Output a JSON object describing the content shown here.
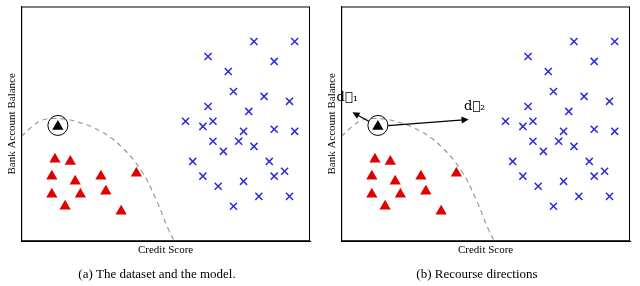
{
  "chart_data": [
    {
      "type": "scatter",
      "caption": "(a) The dataset and the model.",
      "x_label": "Credit Score",
      "y_label": "Bank Account Balance",
      "xlim": [
        0,
        100
      ],
      "ylim": [
        0,
        100
      ],
      "tick_labels": false,
      "grid": false,
      "series": [
        {
          "color": "#e00000",
          "marker": "triangle",
          "x": [
            11.7,
            17.0,
            10.6,
            18.7,
            27.6,
            39.9,
            29.3,
            10.6,
            20.5,
            15.2,
            34.6
          ],
          "values": [
            34.9,
            34.0,
            27.7,
            25.5,
            27.7,
            28.9,
            21.3,
            20.0,
            20.0,
            14.9,
            12.8
          ]
        },
        {
          "color": "#2b2bd9",
          "marker": "x",
          "x": [
            71.7,
            80.6,
            87.6,
            94.7,
            64.7,
            73.5,
            84.1,
            56.9,
            64.7,
            78.8,
            62.9,
            66.4,
            77.0,
            87.6,
            80.6,
            92.9,
            94.7,
            59.4,
            70.0,
            75.3,
            85.9,
            91.2,
            62.9,
            77.0,
            68.2,
            82.3,
            73.5,
            87.6,
            92.9,
            66.4
          ],
          "values": [
            72.3,
            85.1,
            76.6,
            85.1,
            78.7,
            63.8,
            61.7,
            51.1,
            57.4,
            55.3,
            48.9,
            42.6,
            46.8,
            47.7,
            40.4,
            59.6,
            46.8,
            34.0,
            38.3,
            42.6,
            34.0,
            29.8,
            27.7,
            25.5,
            23.4,
            19.1,
            14.9,
            27.7,
            19.1,
            51.1
          ]
        },
        {
          "color": "#000000",
          "marker": "circled_triangle",
          "x": [
            12.7
          ],
          "values": [
            48.9
          ]
        },
        {
          "color": "#999999",
          "type": "line",
          "line_style": "dashed",
          "x": [
            0,
            6.4,
            11.7,
            18.7,
            27.6,
            34.6,
            41.7,
            47.0,
            50.5,
            53.0
          ],
          "values": [
            44.7,
            51.1,
            52.3,
            51.1,
            46.8,
            40.4,
            29.8,
            17.0,
            6.4,
            0
          ]
        }
      ]
    },
    {
      "type": "scatter",
      "caption": "(b) Recourse directions",
      "x_label": "Credit Score",
      "y_label": "Bank Account Balance",
      "xlim": [
        0,
        100
      ],
      "ylim": [
        0,
        100
      ],
      "tick_labels": false,
      "grid": false,
      "series": [
        {
          "color": "#e00000",
          "marker": "triangle",
          "x": [
            11.7,
            17.0,
            10.6,
            18.7,
            27.6,
            39.9,
            29.3,
            10.6,
            20.5,
            15.2,
            34.6
          ],
          "values": [
            34.9,
            34.0,
            27.7,
            25.5,
            27.7,
            28.9,
            21.3,
            20.0,
            20.0,
            14.9,
            12.8
          ]
        },
        {
          "color": "#2b2bd9",
          "marker": "x",
          "x": [
            71.7,
            80.6,
            87.6,
            94.7,
            64.7,
            73.5,
            84.1,
            56.9,
            64.7,
            78.8,
            62.9,
            66.4,
            77.0,
            87.6,
            80.6,
            92.9,
            94.7,
            59.4,
            70.0,
            75.3,
            85.9,
            91.2,
            62.9,
            77.0,
            68.2,
            82.3,
            73.5,
            87.6,
            92.9,
            66.4
          ],
          "values": [
            72.3,
            85.1,
            76.6,
            85.1,
            78.7,
            63.8,
            61.7,
            51.1,
            57.4,
            55.3,
            48.9,
            42.6,
            46.8,
            47.7,
            40.4,
            59.6,
            46.8,
            34.0,
            38.3,
            42.6,
            34.0,
            29.8,
            27.7,
            25.5,
            23.4,
            19.1,
            14.9,
            27.7,
            19.1,
            51.1
          ]
        },
        {
          "color": "#000000",
          "marker": "circled_triangle",
          "x": [
            12.7
          ],
          "values": [
            48.9
          ]
        },
        {
          "color": "#999999",
          "type": "line",
          "line_style": "dashed",
          "x": [
            0,
            6.4,
            11.7,
            18.7,
            27.6,
            34.6,
            41.7,
            47.0,
            50.5,
            53.0
          ],
          "values": [
            44.7,
            51.1,
            52.3,
            51.1,
            46.8,
            40.4,
            29.8,
            17.0,
            6.4,
            0
          ]
        }
      ],
      "arrows": [
        {
          "label": "d⃗₁",
          "from": [
            12.7,
            48.9
          ],
          "to": [
            3.9,
            54.9
          ]
        },
        {
          "label": "d⃗₂",
          "from": [
            12.7,
            48.9
          ],
          "to": [
            44.1,
            51.9
          ]
        }
      ]
    }
  ]
}
